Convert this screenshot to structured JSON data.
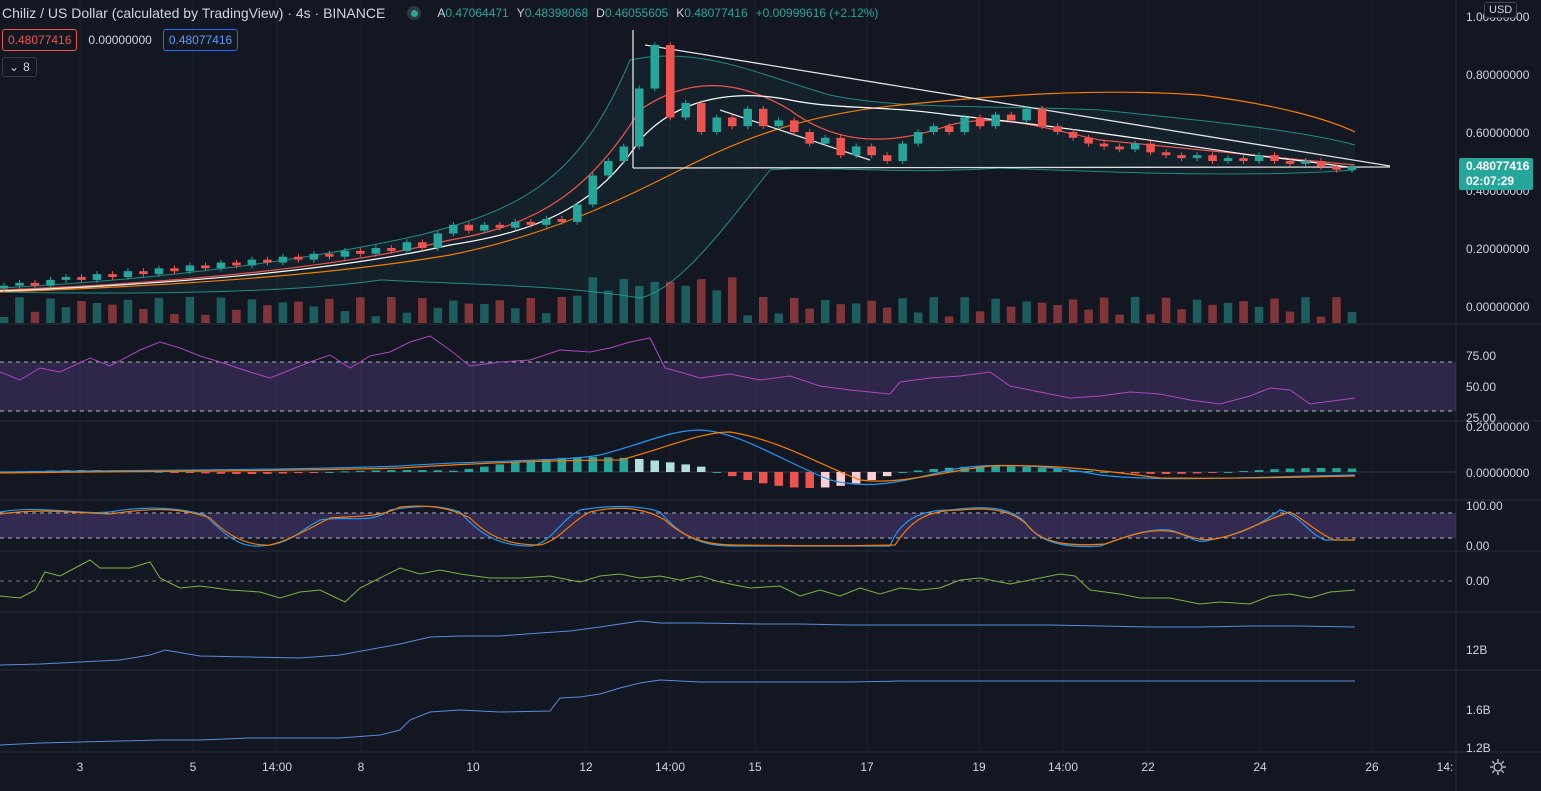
{
  "header": {
    "symbol_title": "Chiliz / US Dollar (calculated by TradingView) · 4s · BINANCE",
    "ohlc": [
      {
        "k": "A",
        "v": "0.47064471"
      },
      {
        "k": "Y",
        "v": "0.48398068"
      },
      {
        "k": "D",
        "v": "0.46055605"
      },
      {
        "k": "K",
        "v": "0.48077416"
      },
      {
        "k": "",
        "v": "+0.00999616 (+2.12%)"
      }
    ]
  },
  "badges": {
    "sell": "0.48077416",
    "spread": "0.00000000",
    "buy": "0.48077416"
  },
  "indicators_toggle": {
    "count": "8"
  },
  "currency": "USD",
  "last_price": {
    "value": "0.48077416",
    "countdown": "02:07:29"
  },
  "colors": {
    "bg": "#131722",
    "up": "#26a69a",
    "down": "#ef5350",
    "grid": "#1e222d",
    "axis_text": "#d1d4dc"
  },
  "chart_data": {
    "type": "candlestick",
    "price_axis": {
      "ticks": [
        "1.00000000",
        "0.80000000",
        "0.60000000",
        "0.40000000",
        "0.20000000",
        "0.00000000"
      ],
      "ylim": [
        0,
        1.0
      ]
    },
    "time_axis": {
      "ticks": [
        "3",
        "5",
        "14:00",
        "8",
        "10",
        "12",
        "14:00",
        "15",
        "17",
        "19",
        "14:00",
        "22",
        "24",
        "26",
        "14:"
      ]
    },
    "candles": [
      [
        0.06,
        0.07
      ],
      [
        0.07,
        0.08
      ],
      [
        0.08,
        0.07
      ],
      [
        0.07,
        0.09
      ],
      [
        0.09,
        0.1
      ],
      [
        0.1,
        0.09
      ],
      [
        0.09,
        0.11
      ],
      [
        0.11,
        0.1
      ],
      [
        0.1,
        0.12
      ],
      [
        0.12,
        0.11
      ],
      [
        0.11,
        0.13
      ],
      [
        0.13,
        0.12
      ],
      [
        0.12,
        0.14
      ],
      [
        0.14,
        0.13
      ],
      [
        0.13,
        0.15
      ],
      [
        0.15,
        0.14
      ],
      [
        0.14,
        0.16
      ],
      [
        0.16,
        0.15
      ],
      [
        0.15,
        0.17
      ],
      [
        0.17,
        0.16
      ],
      [
        0.16,
        0.18
      ],
      [
        0.18,
        0.17
      ],
      [
        0.17,
        0.19
      ],
      [
        0.19,
        0.18
      ],
      [
        0.18,
        0.2
      ],
      [
        0.2,
        0.19
      ],
      [
        0.19,
        0.22
      ],
      [
        0.22,
        0.2
      ],
      [
        0.2,
        0.25
      ],
      [
        0.25,
        0.28
      ],
      [
        0.28,
        0.26
      ],
      [
        0.26,
        0.28
      ],
      [
        0.28,
        0.27
      ],
      [
        0.27,
        0.29
      ],
      [
        0.29,
        0.28
      ],
      [
        0.28,
        0.3
      ],
      [
        0.3,
        0.29
      ],
      [
        0.29,
        0.35
      ],
      [
        0.35,
        0.45
      ],
      [
        0.45,
        0.5
      ],
      [
        0.5,
        0.55
      ],
      [
        0.55,
        0.75
      ],
      [
        0.75,
        0.9
      ],
      [
        0.9,
        0.65
      ],
      [
        0.65,
        0.7
      ],
      [
        0.7,
        0.6
      ],
      [
        0.6,
        0.65
      ],
      [
        0.65,
        0.62
      ],
      [
        0.62,
        0.68
      ],
      [
        0.68,
        0.62
      ],
      [
        0.62,
        0.64
      ],
      [
        0.64,
        0.6
      ],
      [
        0.6,
        0.56
      ],
      [
        0.56,
        0.58
      ],
      [
        0.58,
        0.52
      ],
      [
        0.52,
        0.55
      ],
      [
        0.55,
        0.52
      ],
      [
        0.52,
        0.5
      ],
      [
        0.5,
        0.56
      ],
      [
        0.56,
        0.6
      ],
      [
        0.6,
        0.62
      ],
      [
        0.62,
        0.6
      ],
      [
        0.6,
        0.65
      ],
      [
        0.65,
        0.62
      ],
      [
        0.62,
        0.66
      ],
      [
        0.66,
        0.64
      ],
      [
        0.64,
        0.68
      ],
      [
        0.68,
        0.62
      ],
      [
        0.62,
        0.6
      ],
      [
        0.6,
        0.58
      ],
      [
        0.58,
        0.56
      ],
      [
        0.56,
        0.55
      ],
      [
        0.55,
        0.54
      ],
      [
        0.54,
        0.56
      ],
      [
        0.56,
        0.53
      ],
      [
        0.53,
        0.52
      ],
      [
        0.52,
        0.51
      ],
      [
        0.51,
        0.52
      ],
      [
        0.52,
        0.5
      ],
      [
        0.5,
        0.51
      ],
      [
        0.51,
        0.5
      ],
      [
        0.5,
        0.52
      ],
      [
        0.52,
        0.5
      ],
      [
        0.5,
        0.49
      ],
      [
        0.49,
        0.5
      ],
      [
        0.5,
        0.48
      ],
      [
        0.48,
        0.47
      ],
      [
        0.47,
        0.48
      ]
    ]
  },
  "rsi": {
    "ticks": [
      "75.00",
      "50.00",
      "25.00"
    ]
  },
  "macd": {
    "ticks": [
      "0.20000000",
      "0.00000000"
    ]
  },
  "stoch": {
    "ticks": [
      "100.00",
      "0.00"
    ]
  },
  "osc": {
    "ticks": [
      "0.00"
    ]
  },
  "obv1": {
    "ticks": [
      "12B"
    ]
  },
  "obv2": {
    "ticks": [
      "1.6B",
      "1.2B"
    ]
  }
}
